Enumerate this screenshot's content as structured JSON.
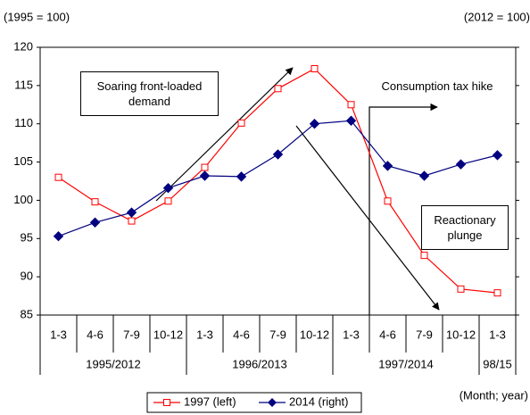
{
  "chart_data": {
    "type": "line",
    "left_axis_label": "(1995 = 100)",
    "right_axis_label": "(2012 = 100)",
    "x_axis_label": "(Month; year)",
    "categories": [
      "1-3",
      "4-6",
      "7-9",
      "10-12",
      "1-3",
      "4-6",
      "7-9",
      "10-12",
      "1-3",
      "4-6",
      "7-9",
      "10-12",
      "1-3"
    ],
    "year_labels": [
      "1995/2012",
      null,
      null,
      null,
      "1996/2013",
      null,
      null,
      null,
      "1997/2014",
      null,
      null,
      null,
      "98/15"
    ],
    "series": [
      {
        "name": "1997 (left)",
        "color": "#ff0000",
        "marker": "square-open",
        "values": [
          103.0,
          99.8,
          97.3,
          99.9,
          104.3,
          110.1,
          114.6,
          117.2,
          112.5,
          99.9,
          92.8,
          88.4,
          87.9
        ]
      },
      {
        "name": "2014 (right)",
        "color": "#000080",
        "marker": "diamond",
        "values": [
          95.3,
          97.1,
          98.4,
          101.6,
          103.2,
          103.1,
          106.0,
          110.0,
          110.4,
          104.5,
          103.2,
          104.7,
          105.9
        ]
      }
    ],
    "ylim": [
      85,
      120
    ],
    "yticks": [
      85,
      90,
      95,
      100,
      105,
      110,
      115,
      120
    ],
    "annotations": {
      "soaring": "Soaring front-loaded demand",
      "tax_hike": "Consumption tax hike",
      "plunge": "Reactionary plunge"
    }
  }
}
